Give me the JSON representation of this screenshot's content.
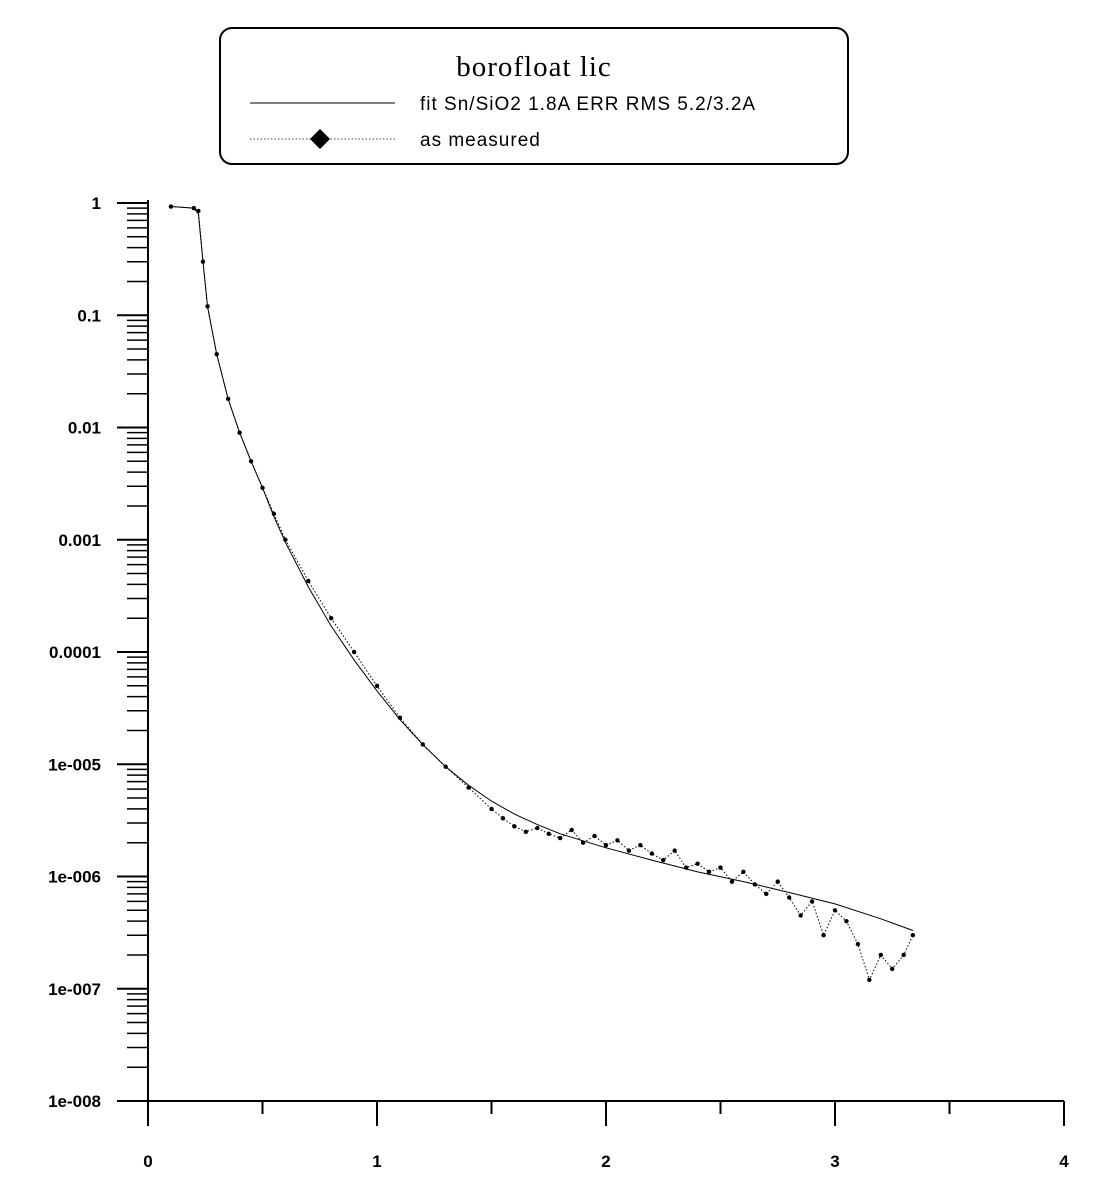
{
  "chart_data": {
    "type": "line",
    "title": "borofloat lic",
    "xlabel": "",
    "ylabel": "",
    "xlim": [
      0,
      4
    ],
    "ylim": [
      1e-08,
      1
    ],
    "y_scale": "log",
    "grid": false,
    "legend_position": "top-center",
    "x_ticks": [
      "0",
      "1",
      "2",
      "3",
      "4"
    ],
    "y_ticks": [
      "1",
      "0.1",
      "0.01",
      "0.001",
      "0.0001",
      "1e-005",
      "1e-006",
      "1e-007",
      "1e-008"
    ],
    "series": [
      {
        "name": "fit Sn/SiO2 1.8A ERR RMS 5.2/3.2A",
        "style": "solid",
        "color": "#000000",
        "x": [
          0.1,
          0.2,
          0.22,
          0.24,
          0.26,
          0.3,
          0.35,
          0.4,
          0.45,
          0.5,
          0.55,
          0.6,
          0.7,
          0.8,
          0.9,
          1.0,
          1.1,
          1.2,
          1.3,
          1.4,
          1.5,
          1.6,
          1.7,
          1.8,
          2.0,
          2.2,
          2.4,
          2.6,
          2.8,
          3.0,
          3.2,
          3.34
        ],
        "y": [
          0.93,
          0.9,
          0.8,
          0.3,
          0.12,
          0.045,
          0.018,
          0.009,
          0.005,
          0.0029,
          0.0016,
          0.00095,
          0.00038,
          0.00017,
          8.5e-05,
          4.5e-05,
          2.5e-05,
          1.5e-05,
          9.5e-06,
          6.5e-06,
          4.7e-06,
          3.6e-06,
          2.9e-06,
          2.4e-06,
          1.8e-06,
          1.4e-06,
          1.1e-06,
          9e-07,
          7.2e-07,
          5.7e-07,
          4.2e-07,
          3.3e-07
        ]
      },
      {
        "name": "as measured",
        "style": "dotted-with-markers",
        "color": "#000000",
        "x": [
          0.1,
          0.2,
          0.22,
          0.24,
          0.26,
          0.3,
          0.35,
          0.4,
          0.45,
          0.5,
          0.55,
          0.6,
          0.7,
          0.8,
          0.9,
          1.0,
          1.1,
          1.2,
          1.3,
          1.4,
          1.5,
          1.55,
          1.6,
          1.65,
          1.7,
          1.75,
          1.8,
          1.85,
          1.9,
          1.95,
          2.0,
          2.05,
          2.1,
          2.15,
          2.2,
          2.25,
          2.3,
          2.35,
          2.4,
          2.45,
          2.5,
          2.55,
          2.6,
          2.65,
          2.7,
          2.75,
          2.8,
          2.85,
          2.9,
          2.95,
          3.0,
          3.05,
          3.1,
          3.15,
          3.2,
          3.25,
          3.3,
          3.34
        ],
        "y": [
          0.93,
          0.9,
          0.85,
          0.3,
          0.12,
          0.045,
          0.018,
          0.009,
          0.005,
          0.0029,
          0.0017,
          0.001,
          0.00043,
          0.0002,
          0.0001,
          5e-05,
          2.6e-05,
          1.5e-05,
          9.5e-06,
          6.2e-06,
          4e-06,
          3.3e-06,
          2.8e-06,
          2.5e-06,
          2.7e-06,
          2.4e-06,
          2.2e-06,
          2.6e-06,
          2e-06,
          2.3e-06,
          1.9e-06,
          2.1e-06,
          1.7e-06,
          1.9e-06,
          1.6e-06,
          1.4e-06,
          1.7e-06,
          1.2e-06,
          1.3e-06,
          1.1e-06,
          1.2e-06,
          9e-07,
          1.1e-06,
          8.5e-07,
          7e-07,
          9e-07,
          6.5e-07,
          4.5e-07,
          6e-07,
          3e-07,
          5e-07,
          4e-07,
          2.5e-07,
          1.2e-07,
          2e-07,
          1.5e-07,
          2e-07,
          3e-07
        ]
      }
    ]
  }
}
